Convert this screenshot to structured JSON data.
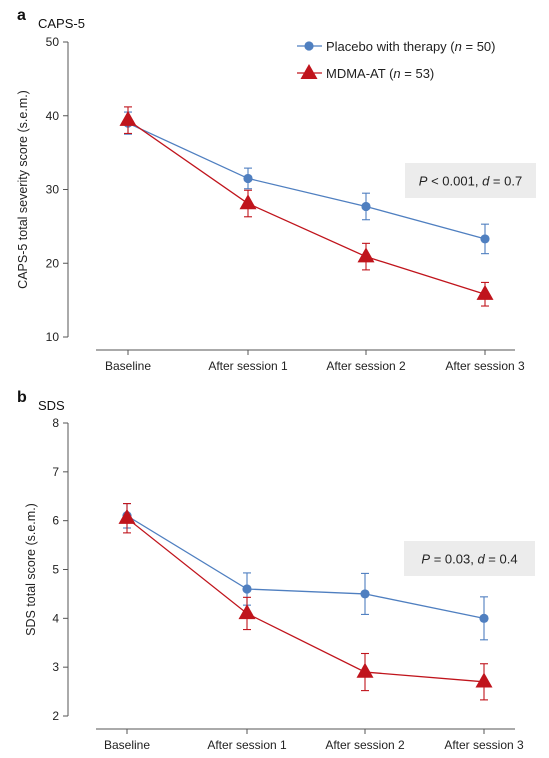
{
  "colors": {
    "placebo": "#4f7fc0",
    "mdma": "#c0141c",
    "stat_box": "#ececec"
  },
  "chart_data": [
    {
      "panel_letter": "a",
      "type": "line",
      "title": "CAPS-5",
      "xlabel": "",
      "ylabel": "CAPS-5 total severity score (s.e.m.)",
      "categories": [
        "Baseline",
        "After session 1",
        "After session 2",
        "After session 3"
      ],
      "ylim": [
        10,
        50
      ],
      "yticks": [
        10,
        20,
        30,
        40,
        50
      ],
      "series": [
        {
          "name": "Placebo with therapy",
          "name_n": "(n = 50)",
          "marker": "circle",
          "values": [
            39.0,
            31.5,
            27.7,
            23.3
          ],
          "err": [
            1.5,
            1.4,
            1.8,
            2.0
          ]
        },
        {
          "name": "MDMA-AT",
          "name_n": "(n = 53)",
          "marker": "triangle",
          "values": [
            39.4,
            28.1,
            20.9,
            15.8
          ],
          "err": [
            1.8,
            1.8,
            1.8,
            1.6
          ]
        }
      ],
      "annotation": {
        "p": "0.001",
        "p_op": "<",
        "d": "0.7"
      },
      "legend_position": "top-right",
      "grid": false
    },
    {
      "panel_letter": "b",
      "type": "line",
      "title": "SDS",
      "xlabel": "",
      "ylabel": "SDS total score (s.e.m.)",
      "categories": [
        "Baseline",
        "After session 1",
        "After session 2",
        "After session 3"
      ],
      "ylim": [
        2,
        8
      ],
      "yticks": [
        2,
        3,
        4,
        5,
        6,
        7,
        8
      ],
      "series": [
        {
          "name": "Placebo with therapy",
          "marker": "circle",
          "values": [
            6.1,
            4.6,
            4.5,
            4.0
          ],
          "err": [
            0.25,
            0.33,
            0.42,
            0.44
          ]
        },
        {
          "name": "MDMA-AT",
          "marker": "triangle",
          "values": [
            6.05,
            4.1,
            2.9,
            2.7
          ],
          "err": [
            0.3,
            0.33,
            0.38,
            0.37
          ]
        }
      ],
      "annotation": {
        "p": "0.03",
        "p_op": "=",
        "d": "0.4"
      },
      "grid": false
    }
  ]
}
